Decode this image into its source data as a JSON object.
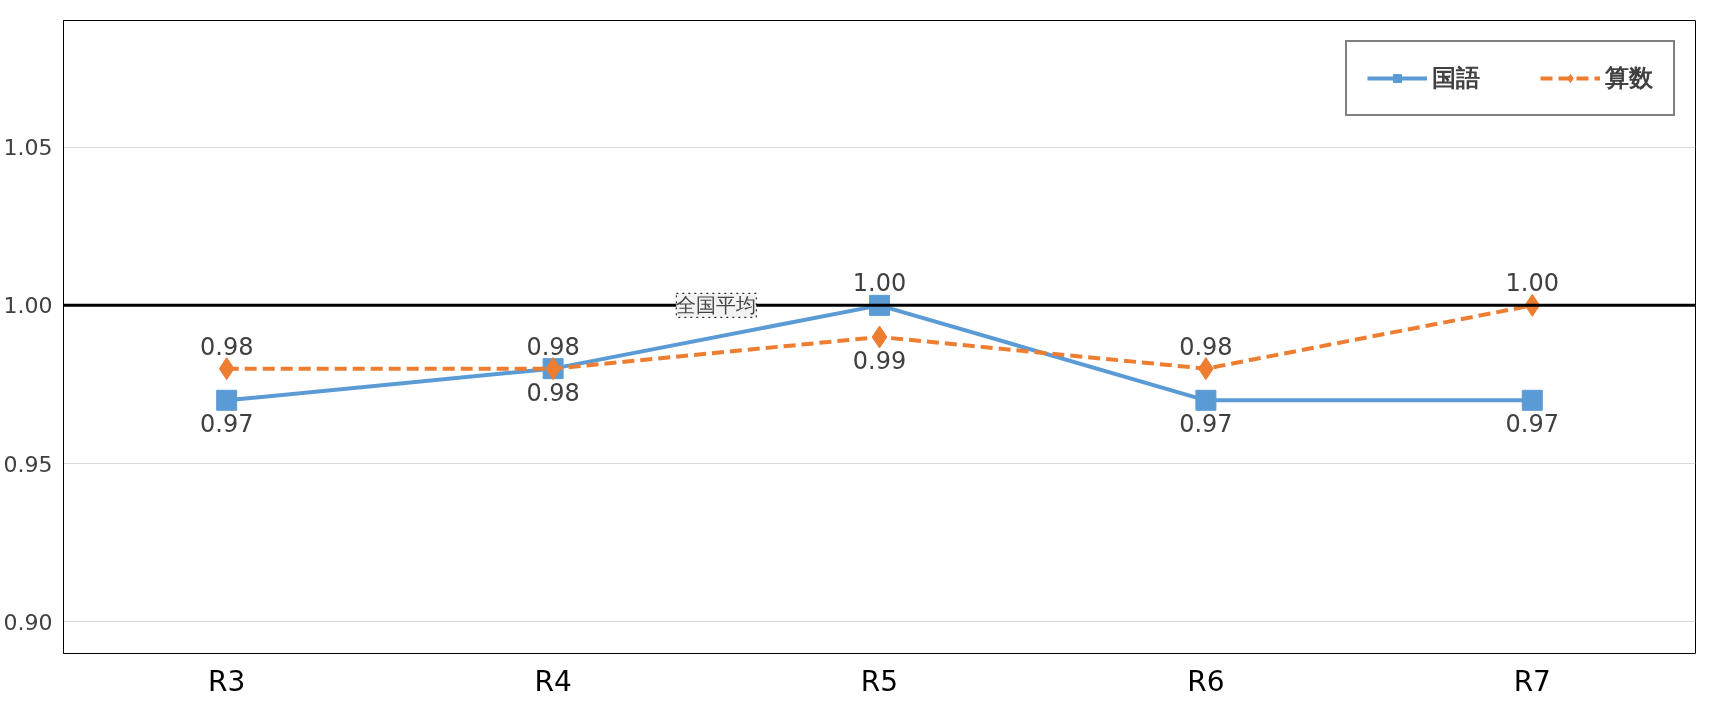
{
  "chart_data": {
    "type": "line",
    "categories": [
      "R3",
      "R4",
      "R5",
      "R6",
      "R7"
    ],
    "series": [
      {
        "name": "国語",
        "color": "#5b9bd5",
        "values": [
          0.97,
          0.98,
          1.0,
          0.97,
          0.97
        ],
        "value_labels": [
          "0.97",
          "0.98",
          "1.00",
          "0.97",
          "0.97"
        ],
        "marker": "square",
        "line_style": "solid"
      },
      {
        "name": "算数",
        "color": "#ed7d31",
        "values": [
          0.98,
          0.98,
          0.99,
          0.98,
          1.0
        ],
        "value_labels": [
          "0.98",
          "0.98",
          "0.99",
          "0.98",
          "1.00"
        ],
        "marker": "diamond",
        "line_style": "dashed"
      }
    ],
    "ylim": [
      0.89,
      1.09
    ],
    "yticks": [
      {
        "value": 0.9,
        "label": "0.90"
      },
      {
        "value": 0.95,
        "label": "0.95"
      },
      {
        "value": 1.0,
        "label": "1.00"
      },
      {
        "value": 1.05,
        "label": "1.05"
      }
    ],
    "ref_lines": [
      {
        "axis": "y",
        "value": 1.0,
        "label": "全国平均",
        "color": "#000000"
      }
    ],
    "grid": "y",
    "legend": "top right"
  }
}
